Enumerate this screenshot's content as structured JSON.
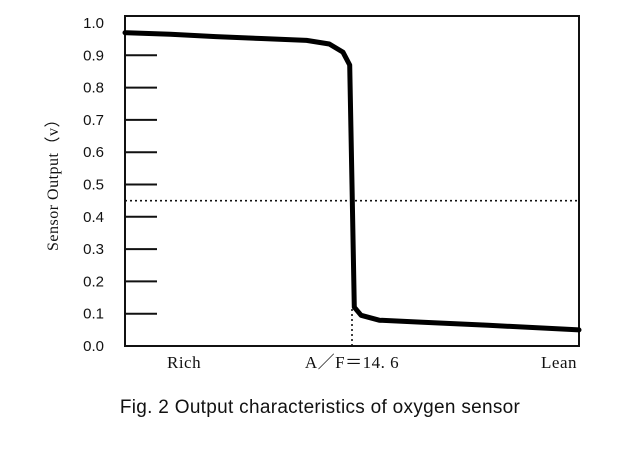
{
  "chart_data": {
    "type": "line",
    "title": "",
    "ylabel": "Sensor  Output（v）",
    "xlabel": "",
    "ylim": [
      0.0,
      1.0
    ],
    "yticks": [
      "0.0",
      "0.1",
      "0.2",
      "0.3",
      "0.4",
      "0.5",
      "0.6",
      "0.7",
      "0.8",
      "0.9",
      "1.0"
    ],
    "categories": [
      "Rich",
      "A／F＝14. 6",
      "Lean"
    ],
    "x_positions": [
      0.0,
      0.5,
      1.0
    ],
    "reference_line": {
      "axis": "y",
      "value": 0.45,
      "style": "dotted"
    },
    "stoichiometric_marker": {
      "x": 0.5,
      "from_y": 0.0,
      "to_y": 0.12,
      "style": "dotted"
    },
    "series": [
      {
        "values": [
          [
            0.0,
            0.97
          ],
          [
            0.1,
            0.965
          ],
          [
            0.2,
            0.958
          ],
          [
            0.3,
            0.952
          ],
          [
            0.4,
            0.946
          ],
          [
            0.45,
            0.935
          ],
          [
            0.48,
            0.91
          ],
          [
            0.495,
            0.87
          ],
          [
            0.5,
            0.5
          ],
          [
            0.505,
            0.12
          ],
          [
            0.52,
            0.095
          ],
          [
            0.56,
            0.08
          ],
          [
            0.65,
            0.074
          ],
          [
            0.8,
            0.064
          ],
          [
            1.0,
            0.05
          ]
        ]
      }
    ]
  },
  "caption": "Fig. 2   Output characteristics of oxygen sensor"
}
